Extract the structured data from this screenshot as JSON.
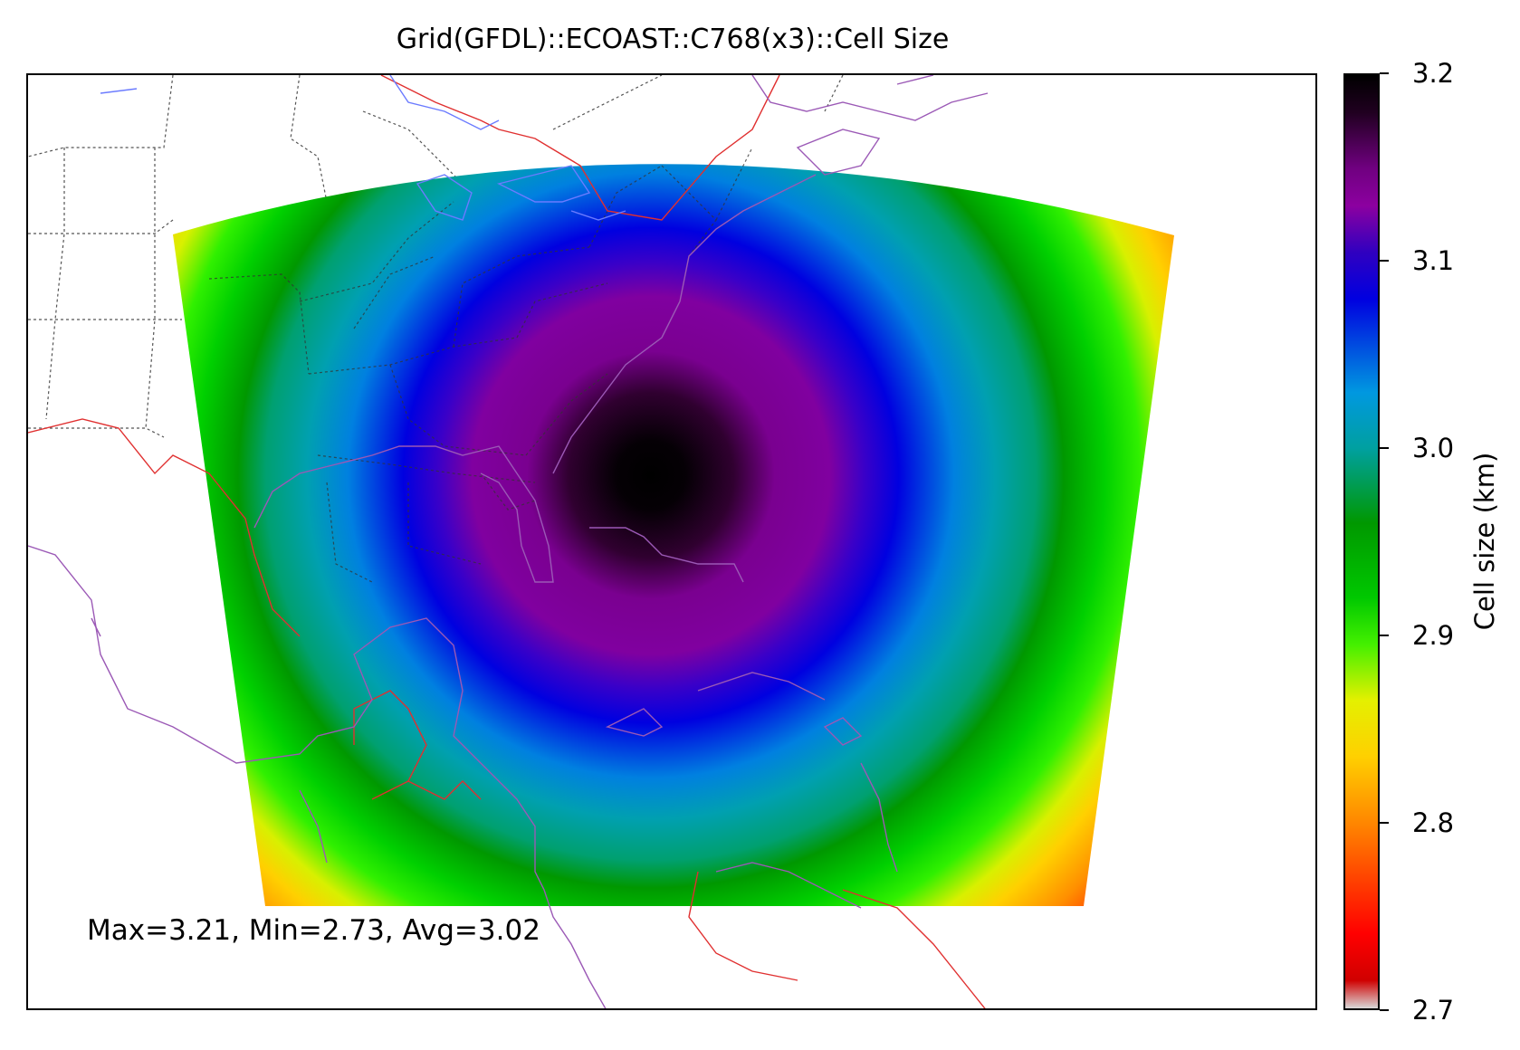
{
  "title": "Grid(GFDL)::ECOAST::C768(x3)::Cell Size",
  "stats_text": "Max=3.21, Min=2.73, Avg=3.02",
  "colorbar": {
    "label": "Cell size (km)",
    "min": 2.7,
    "max": 3.2,
    "ticks": [
      "2.7",
      "2.8",
      "2.9",
      "3.0",
      "3.1",
      "3.2"
    ]
  },
  "field": {
    "variable": "Cell size",
    "units": "km",
    "max": 3.21,
    "min": 2.73,
    "avg": 3.02,
    "pattern": "concentric rings, maximum at centre (black) decreasing outward to red at corners"
  },
  "colors": {
    "coastline": "#9b59b6",
    "country_border": "#e03030",
    "state_border": "#555555",
    "lakes": "#6b7bff"
  }
}
